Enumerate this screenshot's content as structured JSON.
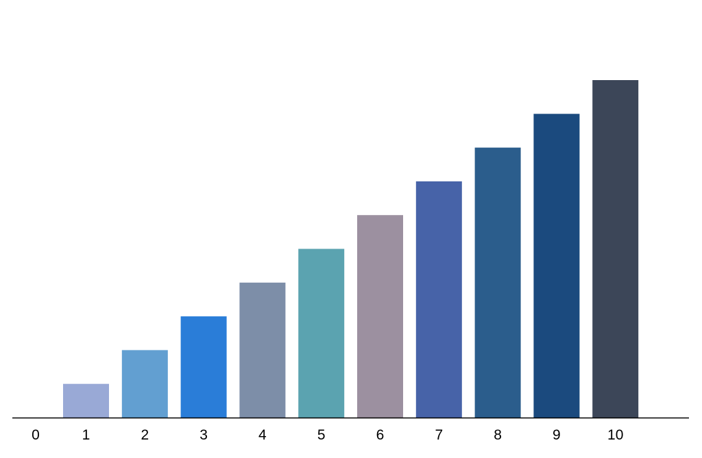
{
  "chart_data": {
    "type": "bar",
    "categories": [
      "0",
      "1",
      "2",
      "3",
      "4",
      "5",
      "6",
      "7",
      "8",
      "9",
      "10"
    ],
    "values": [
      0,
      1,
      2,
      3,
      4,
      5,
      6,
      7,
      8,
      9,
      10
    ],
    "colors": [
      "#ffffff",
      "#99a9d6",
      "#629fd1",
      "#2a7dd8",
      "#7d8ea8",
      "#5ba3b0",
      "#9c90a0",
      "#4763a8",
      "#2b5d8c",
      "#1b4a7e",
      "#3c4658"
    ],
    "title": "",
    "xlabel": "",
    "ylabel": "",
    "ylim": [
      0,
      11
    ],
    "grid": false,
    "y_axis_visible": false,
    "axis_color": "#000000"
  }
}
